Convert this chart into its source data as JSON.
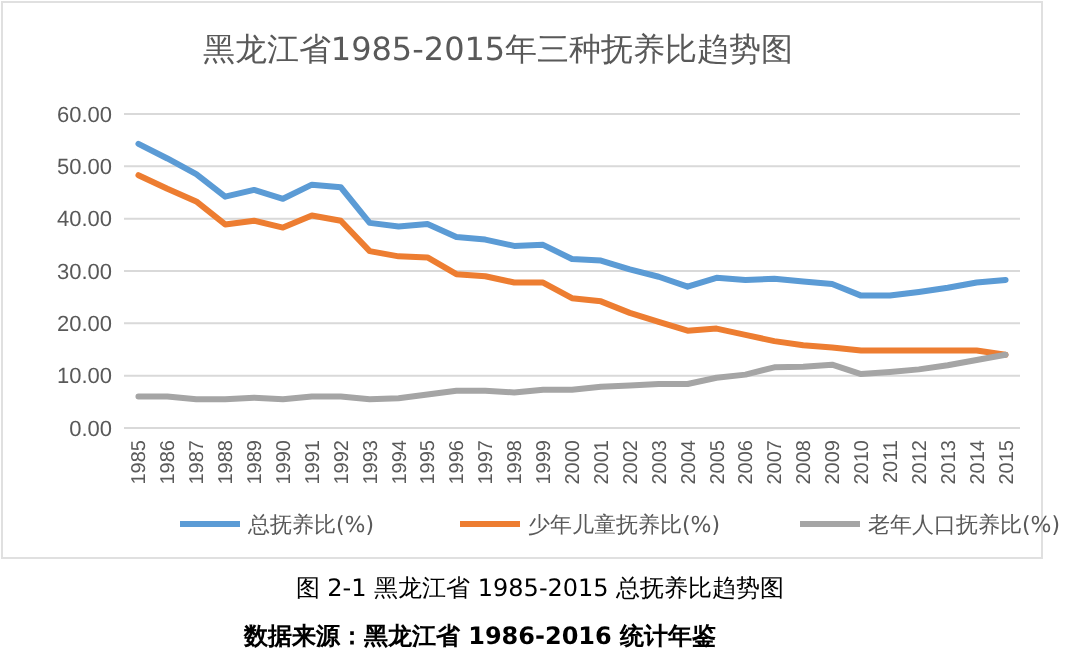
{
  "chart_data": {
    "type": "line",
    "title": "黑龙江省1985-2015年三种抚养比趋势图",
    "categories": [
      "1985",
      "1986",
      "1987",
      "1988",
      "1989",
      "1990",
      "1991",
      "1992",
      "1993",
      "1994",
      "1995",
      "1996",
      "1997",
      "1998",
      "1999",
      "2000",
      "2001",
      "2002",
      "2003",
      "2004",
      "2005",
      "2006",
      "2007",
      "2008",
      "2009",
      "2010",
      "2011",
      "2012",
      "2013",
      "2014",
      "2015"
    ],
    "series": [
      {
        "name": "总抚养比(%)",
        "color": "#5b9bd5",
        "values": [
          54.3,
          51.5,
          48.5,
          44.2,
          45.5,
          43.8,
          46.5,
          46.0,
          39.2,
          38.5,
          39.0,
          36.5,
          36.0,
          34.8,
          35.0,
          32.3,
          32.0,
          30.3,
          28.9,
          27.0,
          28.7,
          28.3,
          28.5,
          28.0,
          27.5,
          25.3,
          25.3,
          26.0,
          26.8,
          27.8,
          28.3
        ]
      },
      {
        "name": "少年儿童抚养比(%)",
        "color": "#ed7d31",
        "values": [
          48.3,
          45.7,
          43.3,
          38.9,
          39.6,
          38.3,
          40.6,
          39.6,
          33.8,
          32.8,
          32.6,
          29.4,
          29.0,
          27.8,
          27.8,
          24.8,
          24.2,
          22.0,
          20.3,
          18.6,
          19.0,
          17.8,
          16.6,
          15.8,
          15.4,
          14.8,
          14.8,
          14.8,
          14.8,
          14.8,
          14.0
        ]
      },
      {
        "name": "老年人口抚养比(%)",
        "color": "#a5a5a5",
        "values": [
          6.0,
          6.0,
          5.5,
          5.5,
          5.8,
          5.5,
          6.0,
          6.0,
          5.5,
          5.7,
          6.4,
          7.1,
          7.1,
          6.8,
          7.3,
          7.3,
          7.9,
          8.1,
          8.4,
          8.4,
          9.6,
          10.2,
          11.6,
          11.7,
          12.1,
          10.3,
          10.7,
          11.2,
          12.0,
          13.0,
          14.0
        ]
      }
    ],
    "ylim": [
      0,
      60
    ],
    "yticks": [
      {
        "value": 0,
        "label": "0.00"
      },
      {
        "value": 10,
        "label": "10.00"
      },
      {
        "value": 20,
        "label": "20.00"
      },
      {
        "value": 30,
        "label": "30.00"
      },
      {
        "value": 40,
        "label": "40.00"
      },
      {
        "value": 50,
        "label": "50.00"
      },
      {
        "value": 60,
        "label": "60.00"
      }
    ],
    "grid": "y",
    "legend": "bottom",
    "marker": "none",
    "line_style": "solid",
    "annotations": [
      "图 2-1 黑龙江省 1985-2015 总抚养比趋势图",
      "数据来源：黑龙江省 1986-2016 统计年鉴"
    ]
  }
}
